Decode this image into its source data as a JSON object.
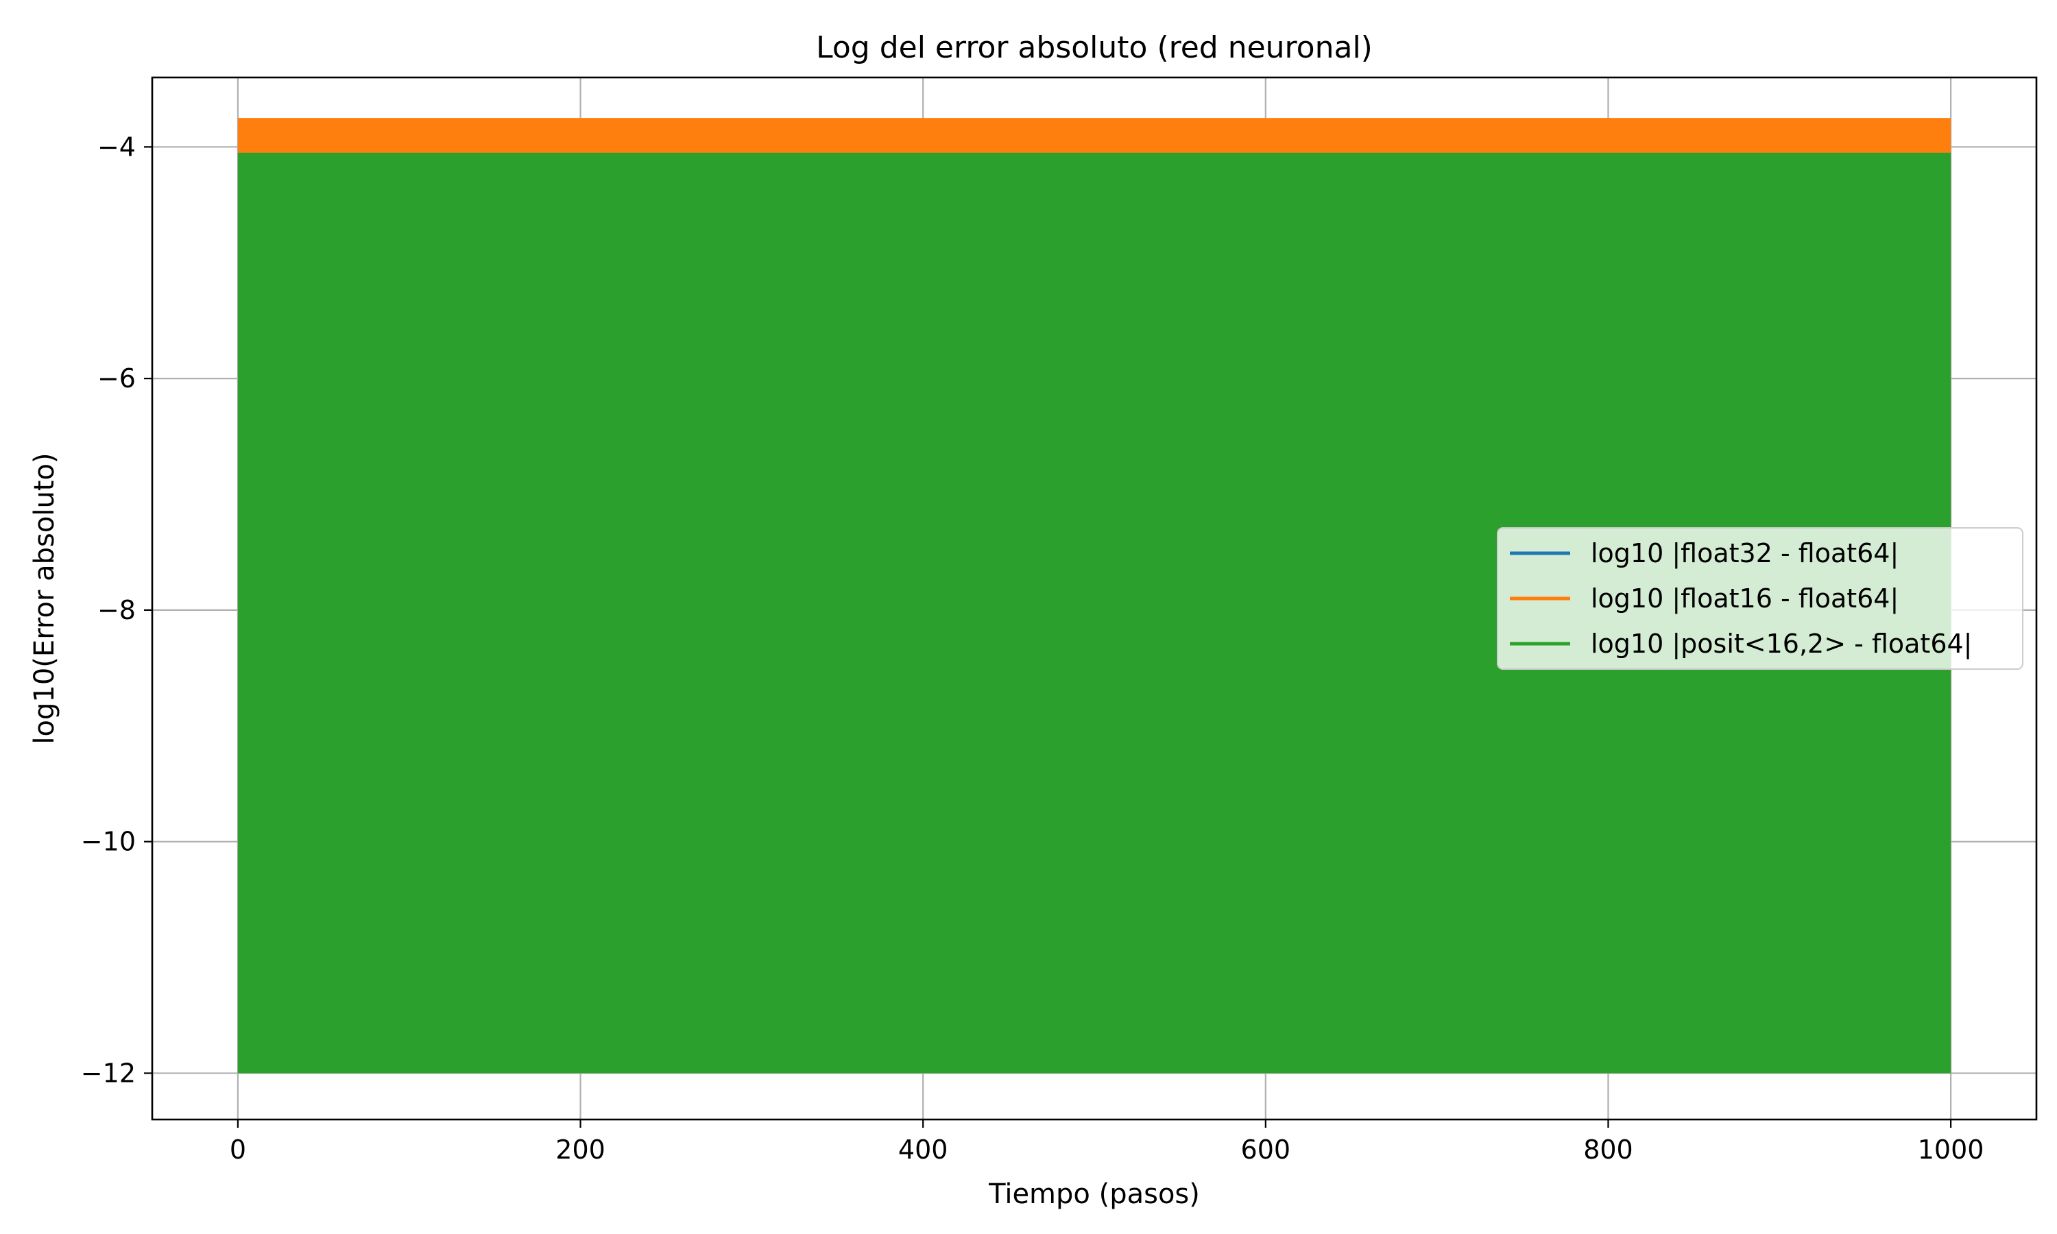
{
  "chart_data": {
    "type": "area",
    "title": "Log del error absoluto (red neuronal)",
    "xlabel": "Tiempo (pasos)",
    "ylabel": "log10(Error absoluto)",
    "xlim": [
      -50,
      1050
    ],
    "ylim": [
      -12.4,
      -3.4
    ],
    "xticks": [
      0,
      200,
      400,
      600,
      800,
      1000
    ],
    "xtick_labels": [
      "0",
      "200",
      "400",
      "600",
      "800",
      "1000"
    ],
    "yticks": [
      -12,
      -10,
      -8,
      -6,
      -4
    ],
    "ytick_labels": [
      "−12",
      "−10",
      "−8",
      "−6",
      "−4"
    ],
    "grid": true,
    "legend_position": "center-right",
    "series": [
      {
        "name": "log10 |float32 - float64|",
        "color": "#1f77b4",
        "x_range": [
          0,
          1000
        ],
        "y_min": -12,
        "y_max": -4.05
      },
      {
        "name": "log10 |float16 - float64|",
        "color": "#ff7f0e",
        "x_range": [
          0,
          1000
        ],
        "y_min": -12,
        "y_max": -3.75
      },
      {
        "name": "log10 |posit<16,2> - float64|",
        "color": "#2ca02c",
        "x_range": [
          0,
          1000
        ],
        "y_min": -12,
        "y_max": -4.05
      }
    ]
  }
}
